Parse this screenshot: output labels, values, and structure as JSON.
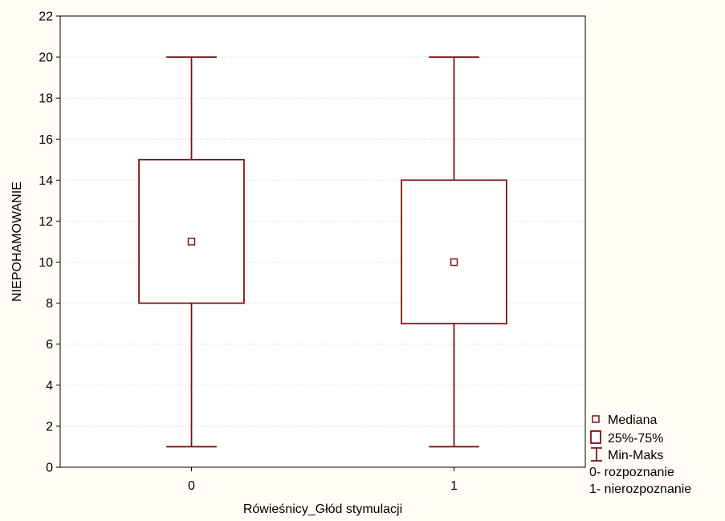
{
  "chart_data": {
    "type": "box",
    "title": "",
    "xlabel": "Rówieśnicy_Głód stymulacji",
    "ylabel": "NIEPOHAMOWANIE",
    "categories": [
      "0",
      "1"
    ],
    "ylim": [
      0,
      22
    ],
    "yticks": [
      0,
      2,
      4,
      6,
      8,
      10,
      12,
      14,
      16,
      18,
      20,
      22
    ],
    "grid": true,
    "legend_position": "bottom-right",
    "boxes": [
      {
        "category": "0",
        "min": 1,
        "q1": 8,
        "median": 11,
        "q3": 15,
        "max": 20
      },
      {
        "category": "1",
        "min": 1,
        "q1": 7,
        "median": 10,
        "q3": 14,
        "max": 20
      }
    ],
    "legend": {
      "median": "Mediana",
      "box": "25%-75%",
      "whisker": "Min-Maks",
      "notes": [
        "0- rozpoznanie",
        "1- nierozpoznanie"
      ]
    },
    "colors": {
      "series": "#7b1416",
      "background": "#fffdf5",
      "plot_background": "#ffffff",
      "grid": "#c8c8c8"
    }
  }
}
